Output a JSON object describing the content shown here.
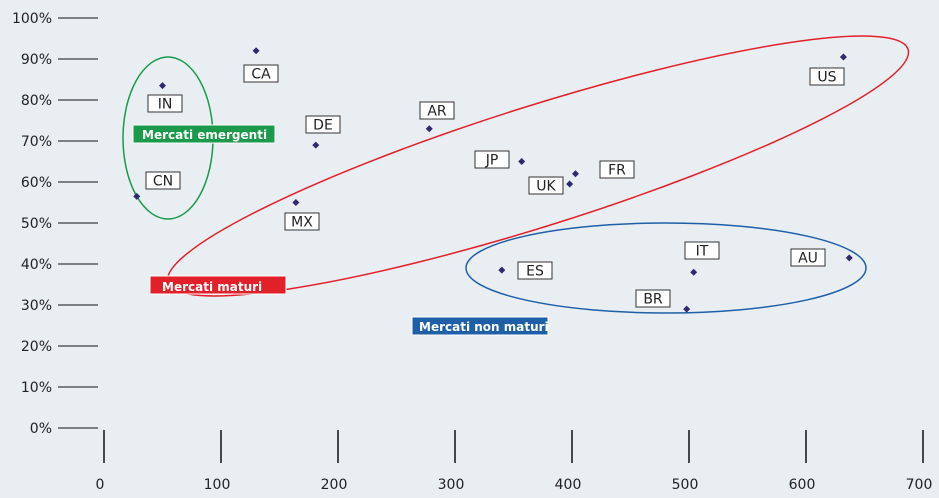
{
  "chart_data": {
    "type": "scatter",
    "x_ticks": [
      "0",
      "100",
      "200",
      "300",
      "400",
      "500",
      "600",
      "700"
    ],
    "y_ticks": [
      "0%",
      "10%",
      "20%",
      "30%",
      "40%",
      "50%",
      "60%",
      "70%",
      "80%",
      "90%",
      "100%"
    ],
    "xlim": [
      0,
      700
    ],
    "ylim": [
      0,
      100
    ],
    "points": [
      {
        "label": "IN",
        "x": 50,
        "y": 83.5
      },
      {
        "label": "CN",
        "x": 28,
        "y": 56.5
      },
      {
        "label": "CA",
        "x": 130,
        "y": 92
      },
      {
        "label": "DE",
        "x": 181,
        "y": 69
      },
      {
        "label": "MX",
        "x": 164,
        "y": 55
      },
      {
        "label": "AR",
        "x": 278,
        "y": 73
      },
      {
        "label": "JP",
        "x": 357,
        "y": 65
      },
      {
        "label": "UK",
        "x": 398,
        "y": 59.5
      },
      {
        "label": "FR",
        "x": 403,
        "y": 62
      },
      {
        "label": "US",
        "x": 632,
        "y": 90.5
      },
      {
        "label": "ES",
        "x": 340,
        "y": 38.5
      },
      {
        "label": "IT",
        "x": 504,
        "y": 38
      },
      {
        "label": "BR",
        "x": 498,
        "y": 29
      },
      {
        "label": "AU",
        "x": 637,
        "y": 41.5
      }
    ],
    "groups": [
      {
        "label": "Mercati emergenti",
        "color": "#1a9a4a"
      },
      {
        "label": "Mercati maturi",
        "color": "#e2202a"
      },
      {
        "label": "Mercati non maturi",
        "color": "#1f5fa8"
      }
    ],
    "marker_color": "#2e2a6e"
  }
}
